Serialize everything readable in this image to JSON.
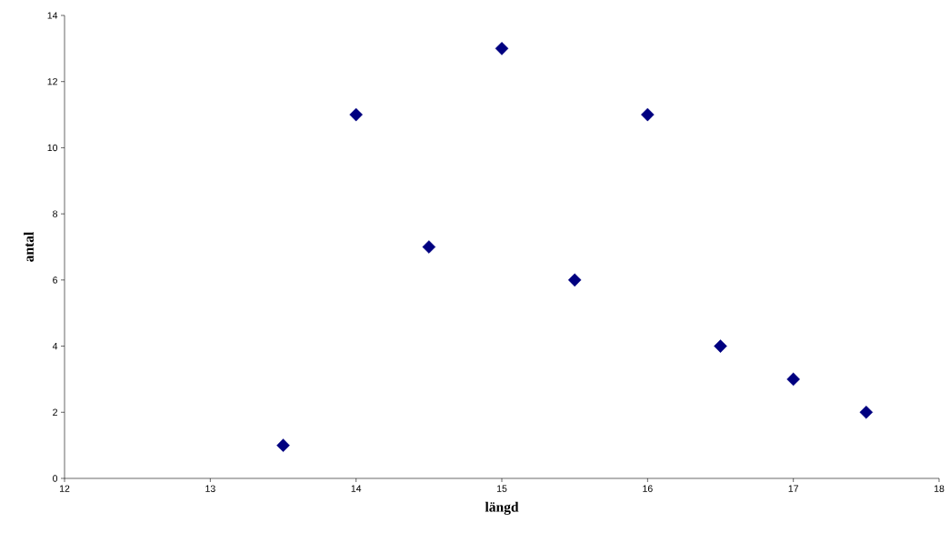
{
  "chart_data": {
    "type": "scatter",
    "xlabel": "längd",
    "ylabel": "antal",
    "x": [
      13.5,
      14,
      14.5,
      15,
      15.5,
      16,
      16.5,
      17,
      17.5
    ],
    "values": [
      1,
      11,
      7,
      13,
      6,
      11,
      4,
      3,
      2
    ],
    "color": "#000080",
    "marker": "diamond",
    "xlim": [
      12,
      18
    ],
    "xticks": [
      12,
      13,
      14,
      15,
      16,
      17,
      18
    ],
    "ylim": [
      0,
      14
    ],
    "yticks": [
      0,
      2,
      4,
      6,
      8,
      10,
      12,
      14
    ],
    "grid": false
  }
}
